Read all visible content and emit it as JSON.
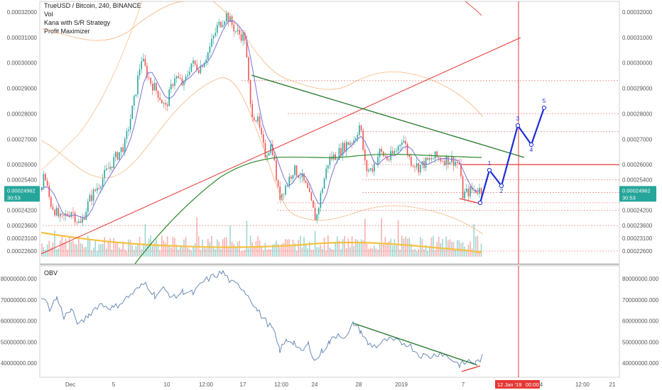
{
  "header": {
    "symbol_line": "TrueUSD / Bitcoin, 240, BINANCE",
    "indicators": [
      "Vol",
      "Kana with S/R Strategy",
      "Profit Maximizer"
    ]
  },
  "obv_panel": {
    "label": "OBV"
  },
  "price_badge": {
    "value": "0.00024962",
    "countdown": "30:53"
  },
  "time_badge": {
    "date": "12 Jan '19",
    "time": "00:00"
  },
  "colors": {
    "up": "#26a69a",
    "down": "#ef5350",
    "ma_fast": "#7b72d6",
    "ma_slow": "#2e8b2e",
    "volume_ma": "#f5c242",
    "bands": "#f4a460",
    "trend": "#2e7d32",
    "support": "#e53935",
    "wave": "#1a2bd8",
    "obv": "#5b7fb0",
    "grid_dotted": "#e57373"
  },
  "chart_data": {
    "type": "candlestick",
    "price_axis": {
      "ticks": [
        "0.00032000",
        "0.00031000",
        "0.00030000",
        "0.00029000",
        "0.00028000",
        "0.00027000",
        "0.00026000",
        "0.00025400",
        "0.00024200",
        "0.00023600",
        "0.00023100",
        "0.00022600"
      ],
      "range": [
        0.000223,
        0.000321
      ]
    },
    "obv_axis": {
      "ticks": [
        "80000000.000",
        "70000000.000",
        "60000000.000",
        "50000000.000",
        "40000000.000"
      ],
      "range": [
        36000000,
        84000000
      ]
    },
    "time_ticks": [
      "Dec",
      "5",
      "10",
      "12:00",
      "17",
      "12:00",
      "24",
      "28",
      "2019",
      "7",
      "12 Jan '19",
      "4",
      "12:00",
      "21"
    ],
    "horizontal_levels": [
      0.000293,
      0.00028,
      0.000273,
      0.00026,
      0.000254,
      0.000249,
      0.000245,
      0.000242,
      0.000236,
      0.000226
    ],
    "wave_labels": [
      "1",
      "2",
      "3",
      "4",
      "5"
    ]
  }
}
